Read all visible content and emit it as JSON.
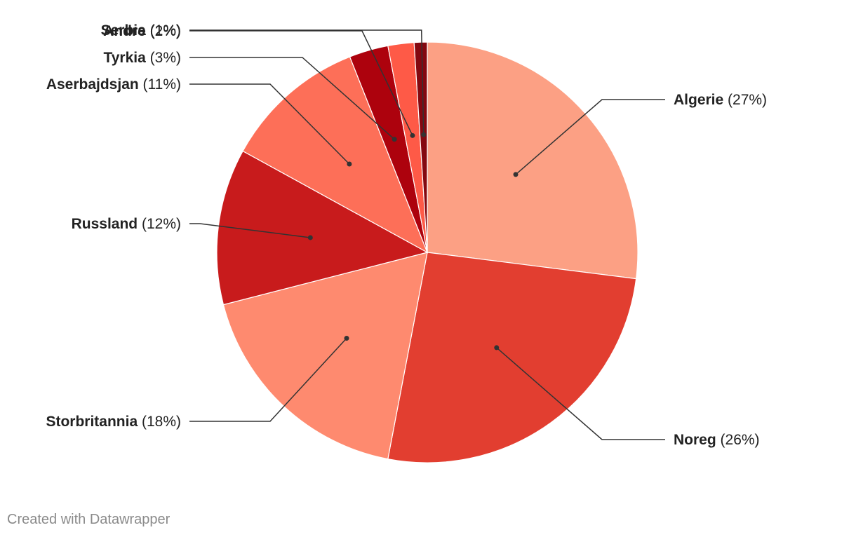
{
  "chart_data": {
    "type": "pie",
    "start_angle_deg": 0,
    "direction": "clockwise",
    "slices": [
      {
        "label": "Algerie",
        "value": 27,
        "value_text": "(27%)",
        "color": "#fca084"
      },
      {
        "label": "Noreg",
        "value": 26,
        "value_text": "(26%)",
        "color": "#e23e30"
      },
      {
        "label": "Storbritannia",
        "value": 18,
        "value_text": "(18%)",
        "color": "#fe8a6f"
      },
      {
        "label": "Russland",
        "value": 12,
        "value_text": "(12%)",
        "color": "#c81b1c"
      },
      {
        "label": "Aserbajdsjan",
        "value": 11,
        "value_text": "(11%)",
        "color": "#fd6f58"
      },
      {
        "label": "Tyrkia",
        "value": 3,
        "value_text": "(3%)",
        "color": "#ad020d"
      },
      {
        "label": "Andre",
        "value": 2,
        "value_text": "(2%)",
        "color": "#fe5a47"
      },
      {
        "label": "Serbia",
        "value": 1,
        "value_text": "(1%)",
        "color": "#840810"
      }
    ],
    "slice_border_color": "#ffffff"
  },
  "footer": {
    "credit": "Created with Datawrapper"
  }
}
